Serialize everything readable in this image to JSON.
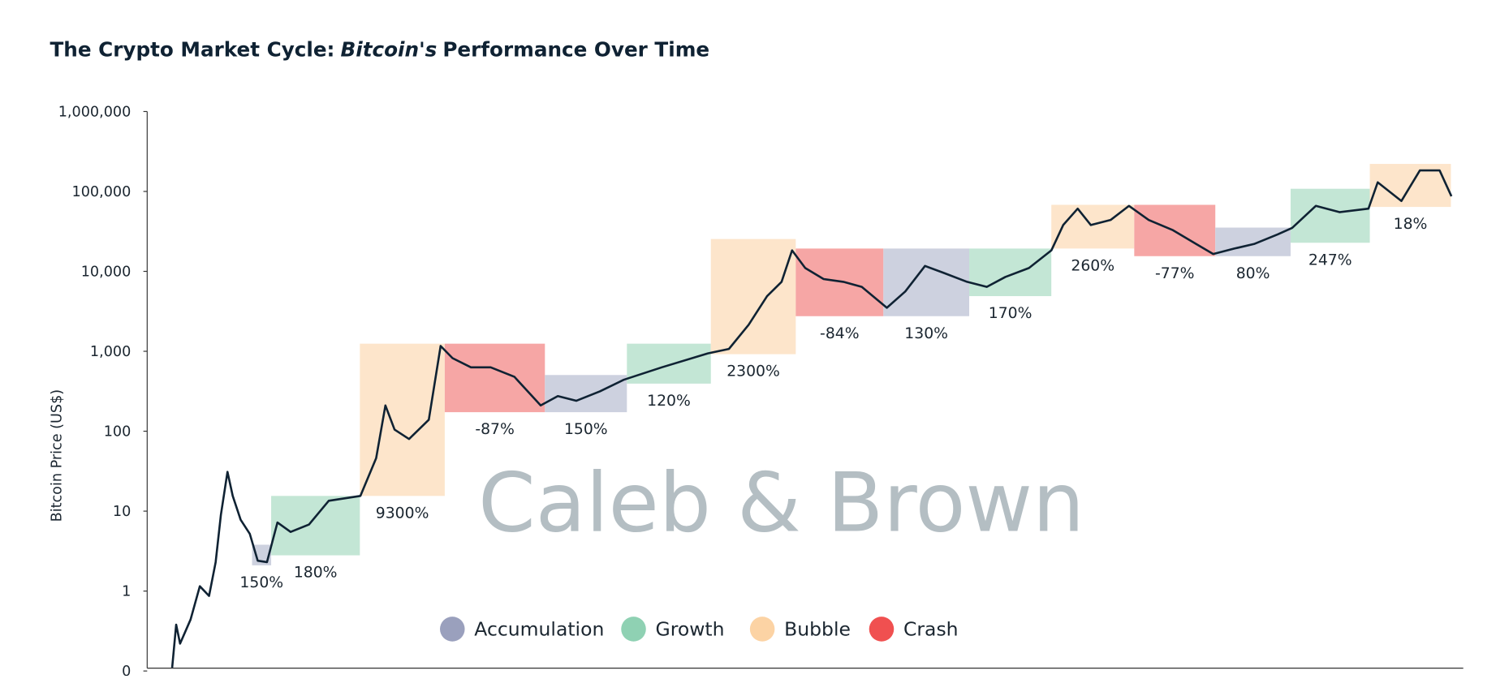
{
  "chart_data": {
    "type": "line",
    "title_parts": [
      "The Crypto Market Cycle:",
      "Bitcoin's",
      "Performance Over Time"
    ],
    "watermark": "Caleb & Brown",
    "ylabel": "Bitcoin Price (US$)",
    "log_y": true,
    "ylim": [
      0.1,
      1000000
    ],
    "yticks": [
      {
        "value": 0.1,
        "label": "0"
      },
      1,
      10,
      100,
      {
        "value": 1000,
        "label": "1,000"
      },
      {
        "value": 10000,
        "label": "10,000"
      },
      {
        "value": 100000,
        "label": "100,000"
      },
      {
        "value": 1000000,
        "label": "1,000,000"
      }
    ],
    "xlim": [
      0,
      100
    ],
    "phases": [
      {
        "name": "Accumulation",
        "color": "#9aa0bd",
        "fill": "#cdd1df"
      },
      {
        "name": "Growth",
        "color": "#8fd1b3",
        "fill": "#c3e6d5"
      },
      {
        "name": "Bubble",
        "color": "#fcd3a4",
        "fill": "#fde5cb"
      },
      {
        "name": "Crash",
        "color": "#f05050",
        "fill": "#f6a6a5"
      }
    ],
    "bands": [
      {
        "phase": "Accumulation",
        "start": 7.97,
        "end": 9.42,
        "low": 2.1,
        "high": 3.8,
        "label": "150%"
      },
      {
        "phase": "Growth",
        "start": 9.42,
        "end": 16.16,
        "low": 2.8,
        "high": 15.5,
        "label": "180%"
      },
      {
        "phase": "Bubble",
        "start": 16.16,
        "end": 22.61,
        "low": 15.5,
        "high": 1245,
        "label": "9300%"
      },
      {
        "phase": "Crash",
        "start": 22.61,
        "end": 30.22,
        "low": 173,
        "high": 1245,
        "label": "-87%"
      },
      {
        "phase": "Accumulation",
        "start": 30.22,
        "end": 36.45,
        "low": 173,
        "high": 505,
        "label": "150%"
      },
      {
        "phase": "Growth",
        "start": 36.45,
        "end": 42.83,
        "low": 394,
        "high": 1245,
        "label": "120%"
      },
      {
        "phase": "Bubble",
        "start": 42.83,
        "end": 49.28,
        "low": 920,
        "high": 25400,
        "label": "2300%"
      },
      {
        "phase": "Crash",
        "start": 49.28,
        "end": 55.94,
        "low": 2750,
        "high": 19300,
        "label": "-84%"
      },
      {
        "phase": "Accumulation",
        "start": 55.94,
        "end": 62.46,
        "low": 2750,
        "high": 19300,
        "label": "130%"
      },
      {
        "phase": "Growth",
        "start": 62.46,
        "end": 68.7,
        "low": 4900,
        "high": 19300,
        "label": "170%"
      },
      {
        "phase": "Bubble",
        "start": 68.7,
        "end": 75.0,
        "low": 19300,
        "high": 68000,
        "label": "260%"
      },
      {
        "phase": "Crash",
        "start": 75.0,
        "end": 81.16,
        "low": 15500,
        "high": 68000,
        "label": "-77%"
      },
      {
        "phase": "Accumulation",
        "start": 81.16,
        "end": 86.88,
        "low": 15500,
        "high": 35300,
        "label": "80%"
      },
      {
        "phase": "Growth",
        "start": 86.88,
        "end": 92.9,
        "low": 22800,
        "high": 108000,
        "label": "247%"
      },
      {
        "phase": "Bubble",
        "start": 92.9,
        "end": 99.06,
        "low": 64000,
        "high": 221000,
        "label": "18%"
      }
    ],
    "series": [
      {
        "color": "#0f2233",
        "x": [
          1.9,
          2.2,
          2.5,
          3.3,
          4.0,
          4.7,
          5.2,
          5.6,
          6.1,
          6.5,
          7.1,
          7.8,
          8.4,
          9.1,
          9.9,
          10.9,
          12.3,
          13.8,
          16.2,
          17.4,
          18.1,
          18.8,
          19.9,
          21.4,
          22.3,
          23.2,
          24.6,
          26.1,
          27.9,
          29.9,
          31.2,
          32.6,
          34.4,
          36.2,
          39.1,
          42.6,
          44.2,
          45.7,
          47.1,
          48.2,
          49.0,
          50.0,
          51.4,
          52.9,
          54.3,
          56.2,
          57.6,
          59.1,
          60.5,
          62.3,
          63.8,
          65.2,
          67.0,
          68.7,
          69.6,
          70.7,
          71.7,
          73.2,
          74.6,
          76.1,
          77.9,
          79.7,
          81.0,
          82.6,
          84.1,
          85.9,
          87.0,
          88.8,
          90.6,
          92.8,
          93.5,
          95.3,
          96.7,
          98.2,
          99.1
        ],
        "values": [
          0.11,
          0.38,
          0.22,
          0.44,
          1.15,
          0.87,
          2.3,
          9,
          31,
          15.5,
          7.8,
          5.2,
          2.4,
          2.3,
          7.2,
          5.5,
          6.8,
          13.5,
          15.5,
          46,
          210,
          105,
          80,
          139,
          1165,
          820,
          630,
          630,
          480,
          210,
          275,
          240,
          315,
          440,
          630,
          940,
          1070,
          2150,
          4900,
          7400,
          18300,
          11000,
          8000,
          7400,
          6400,
          3500,
          5600,
          11700,
          9600,
          7400,
          6400,
          8500,
          11000,
          18300,
          38000,
          61000,
          38000,
          44000,
          66000,
          44000,
          33000,
          22000,
          16500,
          19300,
          22000,
          29000,
          35000,
          66000,
          55000,
          61000,
          130000,
          76000,
          183000,
          183000,
          87000
        ]
      }
    ]
  }
}
